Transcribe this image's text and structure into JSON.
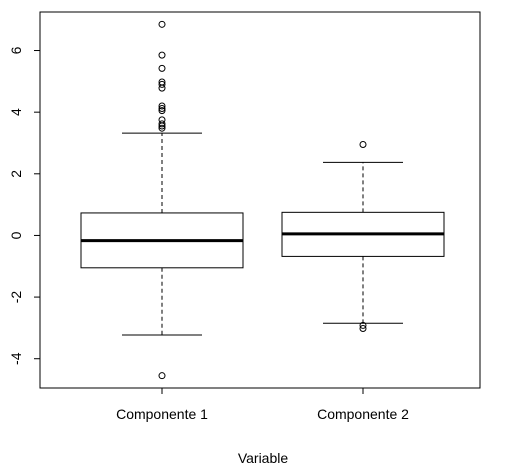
{
  "chart_data": {
    "type": "boxplot",
    "title": "",
    "xlabel": "Variable",
    "ylabel": "",
    "ylim": [
      -4.95,
      7.25
    ],
    "y_ticks": [
      -4,
      -2,
      0,
      2,
      4,
      6
    ],
    "y_tick_labels": [
      "-4",
      "-2",
      "0",
      "2",
      "4",
      "6"
    ],
    "grid": false,
    "legend": "none",
    "colors": {
      "line": "#000000",
      "background": "#ffffff"
    },
    "categories": [
      "Componente 1",
      "Componente 2"
    ],
    "boxes": [
      {
        "category": "Componente 1",
        "whisker_low": -3.23,
        "q1": -1.05,
        "median": -0.17,
        "q3": 0.73,
        "whisker_high": 3.32,
        "outliers": [
          6.85,
          5.85,
          5.42,
          4.98,
          4.9,
          4.78,
          4.2,
          4.12,
          4.05,
          3.75,
          3.62,
          3.55,
          3.48,
          -4.55
        ]
      },
      {
        "category": "Componente 2",
        "whisker_low": -2.85,
        "q1": -0.68,
        "median": 0.05,
        "q3": 0.75,
        "whisker_high": 2.37,
        "outliers": [
          2.95,
          -2.92,
          -3.02
        ]
      }
    ]
  }
}
